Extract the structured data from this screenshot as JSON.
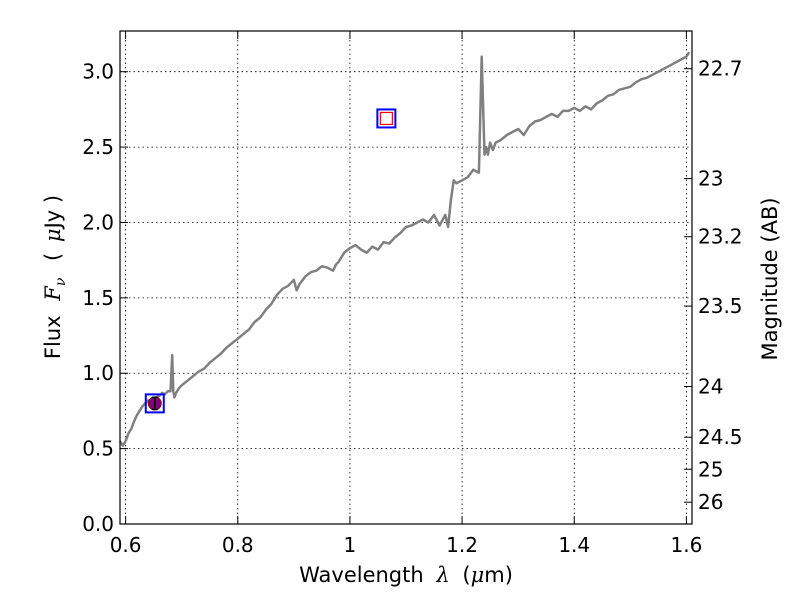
{
  "chart_data": {
    "type": "line",
    "xlabel": {
      "prefix": "Wavelength",
      "symbol": "λ",
      "unit_open": "(",
      "unit_mu": "μ",
      "unit_rest": "m)"
    },
    "ylabel": {
      "prefix": "Flux",
      "symbol": "F",
      "subscript": "ν",
      "unit_open": "(",
      "unit_mu": "μ",
      "unit_rest": "Jy )"
    },
    "y2label": "Magnitude (AB)",
    "xlim": [
      0.59,
      1.61
    ],
    "ylim": [
      0.0,
      3.27
    ],
    "grid": true,
    "grid_style": "dotted",
    "x_ticks": [
      {
        "value": 0.6,
        "label": "0.6"
      },
      {
        "value": 0.8,
        "label": "0.8"
      },
      {
        "value": 1.0,
        "label": "1"
      },
      {
        "value": 1.2,
        "label": "1.2"
      },
      {
        "value": 1.4,
        "label": "1.4"
      },
      {
        "value": 1.6,
        "label": "1.6"
      }
    ],
    "y_ticks": [
      {
        "value": 0.0,
        "label": "0.0"
      },
      {
        "value": 0.5,
        "label": "0.5"
      },
      {
        "value": 1.0,
        "label": "1.0"
      },
      {
        "value": 1.5,
        "label": "1.5"
      },
      {
        "value": 2.0,
        "label": "2.0"
      },
      {
        "value": 2.5,
        "label": "2.5"
      },
      {
        "value": 3.0,
        "label": "3.0"
      }
    ],
    "y2_ticks": [
      {
        "value": 22.7,
        "label": "22.7"
      },
      {
        "value": 23.0,
        "label": "23"
      },
      {
        "value": 23.2,
        "label": "23.2"
      },
      {
        "value": 23.5,
        "label": "23.5"
      },
      {
        "value": 24.0,
        "label": "24"
      },
      {
        "value": 24.5,
        "label": "24.5"
      },
      {
        "value": 25.0,
        "label": "25"
      },
      {
        "value": 26.0,
        "label": "26"
      }
    ],
    "series": [
      {
        "color": "#808080",
        "x": [
          0.59,
          0.595,
          0.6,
          0.605,
          0.61,
          0.615,
          0.62,
          0.625,
          0.63,
          0.635,
          0.64,
          0.645,
          0.65,
          0.655,
          0.66,
          0.665,
          0.67,
          0.675,
          0.68,
          0.683,
          0.685,
          0.687,
          0.69,
          0.695,
          0.7,
          0.71,
          0.72,
          0.73,
          0.74,
          0.75,
          0.76,
          0.77,
          0.78,
          0.79,
          0.8,
          0.81,
          0.82,
          0.83,
          0.84,
          0.85,
          0.86,
          0.87,
          0.88,
          0.89,
          0.9,
          0.905,
          0.91,
          0.92,
          0.93,
          0.94,
          0.95,
          0.96,
          0.97,
          0.975,
          0.98,
          0.99,
          1.0,
          1.01,
          1.02,
          1.03,
          1.04,
          1.05,
          1.06,
          1.07,
          1.08,
          1.09,
          1.1,
          1.11,
          1.12,
          1.13,
          1.14,
          1.15,
          1.16,
          1.17,
          1.175,
          1.18,
          1.185,
          1.19,
          1.2,
          1.21,
          1.22,
          1.23,
          1.235,
          1.24,
          1.243,
          1.246,
          1.25,
          1.255,
          1.26,
          1.27,
          1.28,
          1.29,
          1.3,
          1.31,
          1.32,
          1.33,
          1.34,
          1.35,
          1.36,
          1.37,
          1.38,
          1.39,
          1.4,
          1.41,
          1.42,
          1.43,
          1.44,
          1.45,
          1.46,
          1.47,
          1.48,
          1.49,
          1.5,
          1.51,
          1.52,
          1.53,
          1.54,
          1.55,
          1.56,
          1.57,
          1.58,
          1.59,
          1.6,
          1.605
        ],
        "y": [
          0.55,
          0.52,
          0.55,
          0.6,
          0.63,
          0.68,
          0.72,
          0.75,
          0.78,
          0.8,
          0.82,
          0.79,
          0.81,
          0.84,
          0.85,
          0.87,
          0.86,
          0.88,
          0.88,
          1.12,
          0.88,
          0.84,
          0.87,
          0.9,
          0.92,
          0.95,
          0.98,
          1.01,
          1.03,
          1.07,
          1.1,
          1.13,
          1.17,
          1.2,
          1.23,
          1.26,
          1.29,
          1.34,
          1.37,
          1.42,
          1.46,
          1.52,
          1.56,
          1.58,
          1.62,
          1.55,
          1.59,
          1.64,
          1.67,
          1.68,
          1.71,
          1.7,
          1.68,
          1.72,
          1.74,
          1.8,
          1.83,
          1.85,
          1.82,
          1.8,
          1.84,
          1.82,
          1.87,
          1.86,
          1.9,
          1.93,
          1.97,
          1.98,
          2.0,
          2.02,
          2.0,
          2.05,
          1.98,
          2.05,
          1.97,
          2.15,
          2.28,
          2.26,
          2.28,
          2.3,
          2.35,
          2.33,
          3.1,
          2.45,
          2.5,
          2.45,
          2.53,
          2.48,
          2.53,
          2.55,
          2.58,
          2.6,
          2.62,
          2.58,
          2.64,
          2.67,
          2.68,
          2.7,
          2.72,
          2.7,
          2.74,
          2.74,
          2.76,
          2.74,
          2.77,
          2.75,
          2.79,
          2.81,
          2.84,
          2.85,
          2.88,
          2.89,
          2.9,
          2.93,
          2.95,
          2.96,
          2.98,
          3.0,
          3.02,
          3.04,
          3.06,
          3.08,
          3.1,
          3.13
        ]
      }
    ],
    "photometry": [
      {
        "x": 0.652,
        "y": 0.8,
        "yerr": 0.04,
        "marker_fill": "#800080",
        "marker_edge": "#8b0000",
        "box_color": "#0000ff"
      },
      {
        "x": 1.065,
        "y": 2.69,
        "marker_edge": "#ff0000",
        "box_color": "#0000ff"
      }
    ]
  }
}
